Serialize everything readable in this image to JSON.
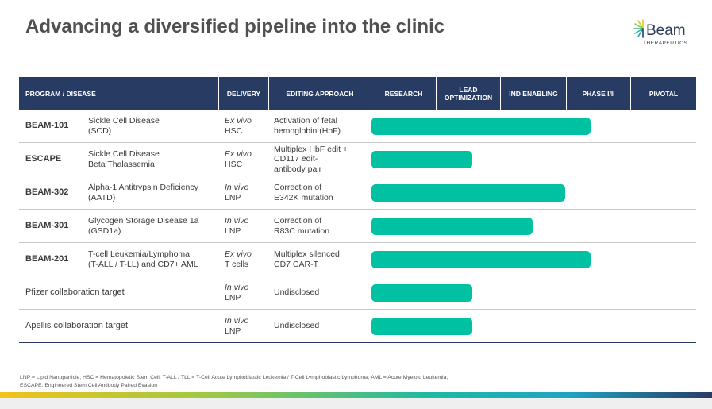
{
  "title": "Advancing a diversified pipeline into the clinic",
  "logo": {
    "word": "Beam",
    "sub": "THERAPEUTICS"
  },
  "header": {
    "program": "PROGRAM / DISEASE",
    "delivery": "DELIVERY",
    "approach": "EDITING APPROACH",
    "stages": [
      "RESEARCH",
      "LEAD OPTIMIZATION",
      "IND ENABLING",
      "PHASE I/II",
      "PIVOTAL"
    ]
  },
  "chart_data": {
    "type": "table",
    "stages": [
      "RESEARCH",
      "LEAD OPTIMIZATION",
      "IND ENABLING",
      "PHASE I/II",
      "PIVOTAL"
    ],
    "rows": [
      {
        "code": "BEAM-101",
        "disease": [
          "Sickle Cell Disease",
          "(SCD)"
        ],
        "delivery_mode": "Ex vivo",
        "delivery": "HSC",
        "approach": [
          "Activation of fetal",
          "hemoglobin (HbF)"
        ],
        "progress": 3.38
      },
      {
        "code": "ESCAPE",
        "disease": [
          "Sickle Cell Disease",
          "Beta Thalassemia"
        ],
        "delivery_mode": "Ex vivo",
        "delivery": "HSC",
        "approach": [
          "Multiplex HbF edit +",
          "CD117 edit-",
          "antibody pair"
        ],
        "progress": 1.55
      },
      {
        "code": "BEAM-302",
        "disease": [
          "Alpha-1 Antitrypsin Deficiency",
          "(AATD)"
        ],
        "delivery_mode": "In vivo",
        "delivery": "LNP",
        "approach": [
          "Correction of",
          "E342K mutation"
        ],
        "progress": 2.98
      },
      {
        "code": "BEAM-301",
        "disease": [
          "Glycogen Storage Disease 1a",
          "(GSD1a)"
        ],
        "delivery_mode": "In vivo",
        "delivery": "LNP",
        "approach": [
          "Correction of",
          "R83C mutation"
        ],
        "progress": 2.48
      },
      {
        "code": "BEAM-201",
        "disease": [
          "T-cell Leukemia/Lymphoma",
          "(T-ALL / T-LL) and CD7+ AML"
        ],
        "delivery_mode": "Ex vivo",
        "delivery": "T cells",
        "approach": [
          "Multiplex silenced",
          "CD7 CAR-T"
        ],
        "progress": 3.38
      },
      {
        "code": "Pfizer collaboration target",
        "disease": [],
        "delivery_mode": "In vivo",
        "delivery": "LNP",
        "approach": [
          "Undisclosed"
        ],
        "progress": 1.55,
        "plain": true
      },
      {
        "code": "Apellis collaboration target",
        "disease": [],
        "delivery_mode": "In vivo",
        "delivery": "LNP",
        "approach": [
          "Undisclosed"
        ],
        "progress": 1.55,
        "plain": true
      }
    ]
  },
  "footnote": "LNP = Lipid Nanoparticle; HSC = Hematopoietic Stem Cell; T-ALL / TLL = T-Cell Acute Lymphoblastic Leukemia / T-Cell Lymphoblastic Lymphoma; AML = Acute Myeloid Leukemia; ESCAPE: Engineered Stem Cell Antibody Paired Evasion",
  "colors": {
    "header": "#283c63",
    "bar": "#00c1a2",
    "title": "#505050"
  }
}
